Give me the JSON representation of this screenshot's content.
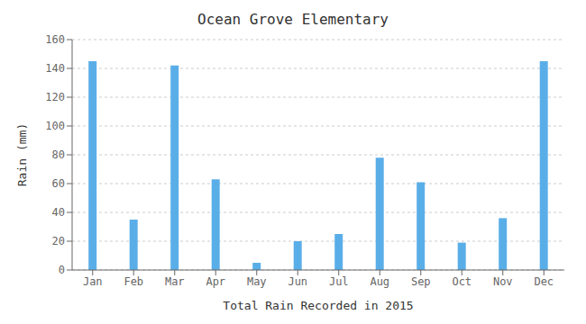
{
  "chart_data": {
    "type": "bar",
    "title": "Ocean Grove Elementary",
    "xlabel": "Total Rain Recorded in 2015",
    "ylabel": "Rain (mm)",
    "categories": [
      "Jan",
      "Feb",
      "Mar",
      "Apr",
      "May",
      "Jun",
      "Jul",
      "Aug",
      "Sep",
      "Oct",
      "Nov",
      "Dec"
    ],
    "values": [
      145,
      35,
      142,
      63,
      5,
      20,
      25,
      78,
      61,
      19,
      36,
      145
    ],
    "color": "#5aaee8",
    "ylim": [
      0,
      160
    ],
    "yticks": [
      0,
      20,
      40,
      60,
      80,
      100,
      120,
      140,
      160
    ],
    "grid": true
  }
}
